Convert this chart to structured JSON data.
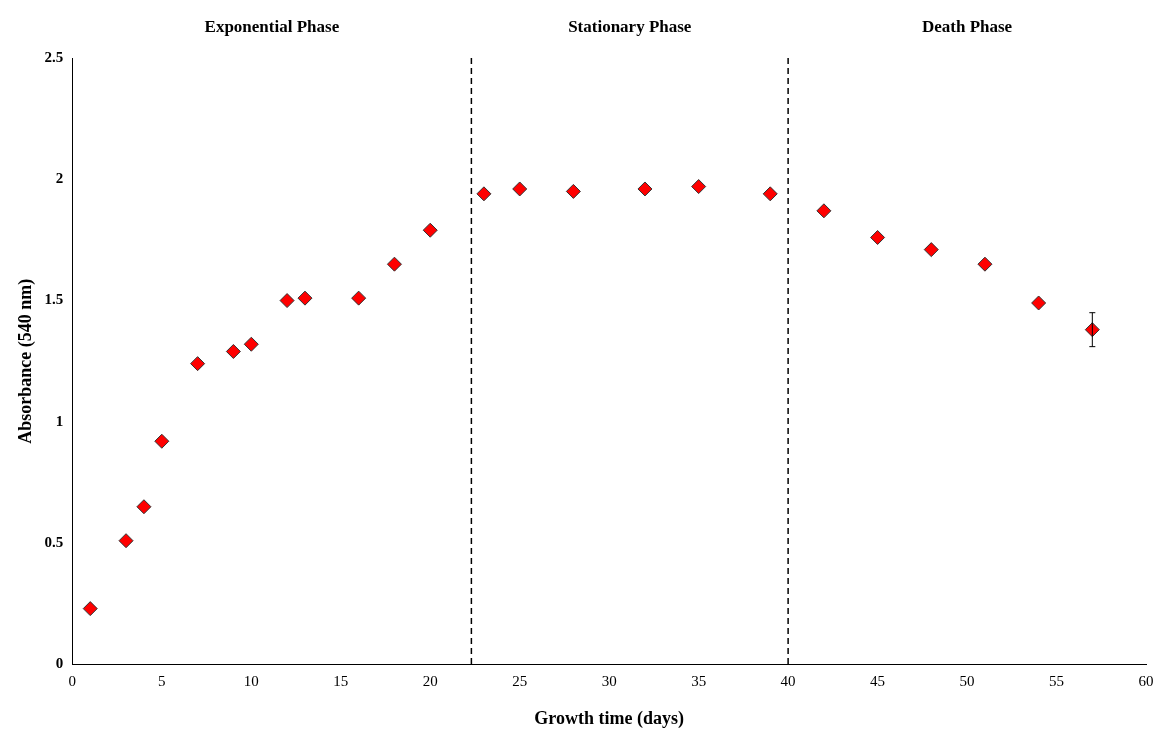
{
  "chart_data": {
    "type": "scatter",
    "xlabel": "Growth time (days)",
    "ylabel": "Absorbance (540 nm)",
    "x": [
      1,
      3,
      4,
      5,
      7,
      9,
      10,
      12,
      13,
      16,
      18,
      20,
      23,
      25,
      28,
      32,
      35,
      39,
      42,
      45,
      48,
      51,
      54,
      57
    ],
    "series": [
      {
        "color": "#ff0000",
        "values": [
          0.23,
          0.51,
          0.65,
          0.92,
          1.24,
          1.29,
          1.32,
          1.5,
          1.51,
          1.51,
          1.65,
          1.79,
          1.94,
          1.96,
          1.95,
          1.96,
          1.97,
          1.94,
          1.87,
          1.76,
          1.71,
          1.65,
          1.49,
          1.38
        ],
        "errors": [
          null,
          null,
          null,
          null,
          null,
          null,
          null,
          null,
          null,
          null,
          null,
          null,
          null,
          null,
          null,
          null,
          null,
          null,
          null,
          null,
          null,
          null,
          null,
          0.07
        ]
      }
    ],
    "xlim": [
      0,
      60
    ],
    "xticks": [
      0,
      5,
      10,
      15,
      20,
      25,
      30,
      35,
      40,
      45,
      50,
      55,
      60
    ],
    "ylim": [
      0,
      2.5
    ],
    "yticks": [
      0,
      0.5,
      1,
      1.5,
      2,
      2.5
    ],
    "ref_lines": [
      {
        "axis": "x",
        "value": 22.3,
        "line_style": "dashed",
        "color": "#000000"
      },
      {
        "axis": "x",
        "value": 40,
        "line_style": "dashed",
        "color": "#000000"
      }
    ],
    "annotations": [
      "Exponential Phase",
      "Stationary Phase",
      "Death Phase"
    ],
    "marker": "diamond",
    "grid": false,
    "legend": false
  }
}
